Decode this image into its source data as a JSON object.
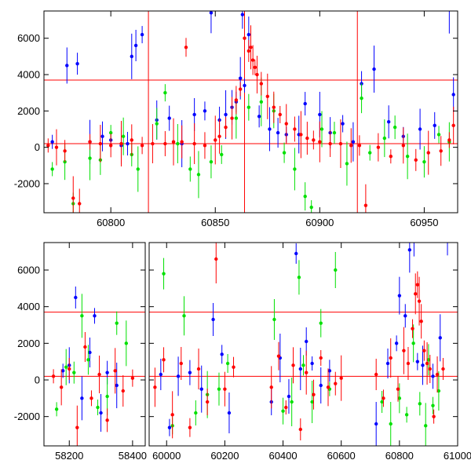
{
  "chart_data": [
    {
      "type": "scatter",
      "panel": "top",
      "title": "",
      "xlabel": "",
      "ylabel": "",
      "xlim": [
        60768,
        60966
      ],
      "ylim": [
        -3600,
        7500
      ],
      "x_ticks": [
        60800,
        60850,
        60900,
        60950
      ],
      "y_ticks": [
        -2000,
        0,
        2000,
        4000,
        6000
      ],
      "grid": false,
      "legend": "none",
      "series_colors": {
        "blue": "#0000ff",
        "green": "#00e000",
        "red": "#ff0000"
      },
      "reference_lines": {
        "horizontal": [
          3700,
          200
        ],
        "vertical": [
          60818,
          60864,
          60918
        ]
      },
      "series": [
        {
          "color": "blue",
          "x": [
            60772,
            60779,
            60784,
            60790,
            60796,
            60800,
            60805,
            60808,
            60810,
            60812,
            60815,
            60822,
            60828,
            60834,
            60840,
            60845,
            60848,
            60852,
            60855,
            60858,
            60860,
            60862,
            60863,
            60864,
            60866,
            60871,
            60876,
            60880,
            60884,
            60890,
            60893,
            60900,
            60905,
            60911,
            60916,
            60920,
            60926,
            60933,
            60940,
            60948,
            60955,
            60962,
            60964
          ],
          "y": [
            300,
            4500,
            4600,
            300,
            600,
            400,
            100,
            200,
            5000,
            5600,
            6200,
            1500,
            1600,
            200,
            1800,
            2000,
            7400,
            1500,
            1800,
            2200,
            2500,
            3800,
            7300,
            3400,
            6200,
            1700,
            1000,
            800,
            700,
            700,
            2400,
            1800,
            800,
            1300,
            300,
            3500,
            4300,
            1400,
            600,
            1000,
            1200,
            7600,
            2900
          ]
        },
        {
          "color": "green",
          "x": [
            60772,
            60778,
            60782,
            60790,
            60795,
            60800,
            60806,
            60810,
            60813,
            60822,
            60826,
            60832,
            60838,
            60842,
            60848,
            60853,
            60860,
            60866,
            60872,
            60878,
            60883,
            60888,
            60893,
            60896,
            60901,
            60907,
            60913,
            60920,
            60924,
            60931,
            60936,
            60942,
            60950,
            60957,
            60962
          ],
          "y": [
            -1200,
            -800,
            -3100,
            -600,
            -700,
            800,
            600,
            -400,
            -1200,
            1300,
            3000,
            200,
            -1200,
            -1500,
            -800,
            -400,
            1600,
            2200,
            2500,
            2000,
            -300,
            -1200,
            -2700,
            -3300,
            1000,
            800,
            -900,
            2700,
            -300,
            500,
            1100,
            -500,
            -800,
            700,
            300
          ]
        },
        {
          "color": "red",
          "x": [
            60770,
            60774,
            60778,
            60782,
            60785,
            60790,
            60795,
            60800,
            60805,
            60810,
            60815,
            60820,
            60826,
            60830,
            60834,
            60836,
            60840,
            60845,
            60850,
            60852,
            60855,
            60858,
            60860,
            60862,
            60864,
            60866,
            60867,
            60868,
            60869,
            60870,
            60872,
            60875,
            60878,
            60881,
            60884,
            60888,
            60891,
            60894,
            60897,
            60900,
            60905,
            60910,
            60915,
            60919,
            60922,
            60928,
            60934,
            60940,
            60946,
            60952,
            60958,
            60962,
            60964
          ],
          "y": [
            100,
            0,
            -200,
            -2800,
            -3100,
            300,
            200,
            100,
            200,
            400,
            100,
            200,
            200,
            300,
            300,
            5500,
            200,
            100,
            400,
            600,
            1100,
            1600,
            2600,
            3200,
            6000,
            5300,
            5500,
            4800,
            4400,
            4000,
            3500,
            2800,
            2200,
            1800,
            1300,
            1000,
            700,
            500,
            400,
            300,
            200,
            200,
            100,
            100,
            -3200,
            0,
            -500,
            100,
            -700,
            -300,
            -200,
            400,
            1200
          ]
        }
      ]
    },
    {
      "type": "scatter",
      "panel": "bottom",
      "title": "",
      "xlabel": "",
      "ylabel": "",
      "xlim": [
        58120,
        61000
      ],
      "ylim": [
        -3600,
        7500
      ],
      "x_ticks": [
        58200,
        58400,
        60000,
        60200,
        60400,
        60600,
        60800,
        61000
      ],
      "x_tick_labels": [
        "58200",
        "58400",
        "60000",
        "60200",
        "60400",
        "60600",
        "60800",
        "61000"
      ],
      "y_ticks": [
        -2000,
        0,
        2000,
        4000,
        6000
      ],
      "grid": false,
      "legend": "none",
      "broken_axis": true,
      "x_segments": [
        [
          58120,
          58440
        ],
        [
          59940,
          61000
        ]
      ],
      "reference_lines": {
        "horizontal": [
          3700,
          200
        ]
      },
      "series": [
        {
          "color": "blue",
          "x": [
            58180,
            58200,
            58220,
            58240,
            58265,
            58280,
            58300,
            58320,
            58350,
            59980,
            60010,
            60040,
            60080,
            60120,
            60160,
            60190,
            60215,
            60360,
            60390,
            60420,
            60445,
            60460,
            60480,
            60500,
            60530,
            60560,
            60720,
            60760,
            60790,
            60800,
            60820,
            60835,
            60850,
            60862,
            60880,
            60915,
            60940,
            60965
          ],
          "y": [
            500,
            800,
            4500,
            -1000,
            1500,
            3500,
            -1800,
            400,
            -300,
            300,
            -2600,
            200,
            400,
            -500,
            3300,
            1400,
            -1800,
            -1200,
            1200,
            -900,
            6900,
            600,
            2100,
            900,
            -300,
            500,
            -2400,
            900,
            2000,
            4600,
            3500,
            7100,
            7600,
            1000,
            800,
            200,
            2300,
            7700
          ]
        },
        {
          "color": "green",
          "x": [
            58160,
            58190,
            58215,
            58240,
            58260,
            58290,
            58320,
            58350,
            58380,
            59990,
            60020,
            60060,
            60100,
            60140,
            60180,
            60210,
            60370,
            60400,
            60430,
            60455,
            60470,
            60500,
            60530,
            60560,
            60580,
            60740,
            60770,
            60800,
            60825,
            60848,
            60870,
            60890,
            60900,
            60915,
            60935
          ],
          "y": [
            -1600,
            700,
            400,
            3500,
            1100,
            -1500,
            -900,
            3100,
            2000,
            5800,
            -2500,
            3500,
            -1800,
            -800,
            -500,
            900,
            3300,
            -1700,
            -1200,
            5600,
            800,
            -1200,
            3100,
            -500,
            6000,
            -1200,
            -2400,
            -1000,
            -1900,
            2000,
            -1300,
            -2500,
            1100,
            -1400,
            -600
          ]
        },
        {
          "color": "red",
          "x": [
            58150,
            58175,
            58200,
            58225,
            58250,
            58270,
            58295,
            58320,
            58345,
            58370,
            58400,
            59960,
            59990,
            60020,
            60050,
            60080,
            60110,
            60140,
            60170,
            60200,
            60230,
            60360,
            60385,
            60410,
            60435,
            60460,
            60480,
            60505,
            60530,
            60555,
            60580,
            60600,
            60720,
            60745,
            60770,
            60795,
            60815,
            60830,
            60845,
            60855,
            60862,
            60868,
            60875,
            60885,
            60895,
            60905,
            60918,
            60930,
            60950
          ],
          "y": [
            200,
            -400,
            600,
            -2600,
            1800,
            -1000,
            300,
            -2200,
            500,
            -600,
            100,
            -400,
            1100,
            -1900,
            900,
            -2600,
            600,
            -1200,
            6600,
            -500,
            700,
            -400,
            1300,
            -1500,
            800,
            -2700,
            400,
            -800,
            1200,
            -400,
            -200,
            100,
            300,
            -1000,
            1200,
            -500,
            1600,
            900,
            2800,
            4700,
            5200,
            4300,
            3200,
            1600,
            900,
            600,
            -2000,
            300,
            600
          ]
        }
      ]
    }
  ]
}
